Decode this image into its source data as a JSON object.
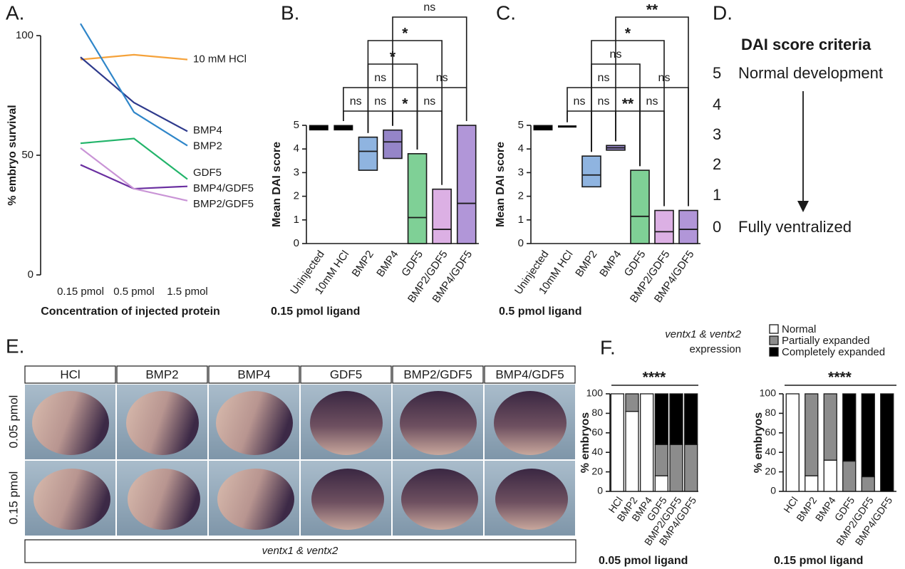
{
  "panel_labels": [
    "A.",
    "B.",
    "C.",
    "D.",
    "E.",
    "F."
  ],
  "chart_data": [
    {
      "type": "line",
      "ylabel": "% embryo survival",
      "xlabel": "Concentration of injected protein",
      "categories": [
        "0.15 pmol",
        "0.5 pmol",
        "1.5 pmol"
      ],
      "ylim": [
        0,
        100
      ],
      "yticks": [
        0,
        50,
        100
      ],
      "series": [
        {
          "name": "10 mM HCl",
          "color": "#f5a23a",
          "values": [
            90,
            92,
            90
          ]
        },
        {
          "name": "BMP4",
          "color": "#2e3a8c",
          "values": [
            91,
            72,
            60
          ]
        },
        {
          "name": "BMP2",
          "color": "#2f86c9",
          "values": [
            105,
            68,
            54
          ]
        },
        {
          "name": "GDF5",
          "color": "#22b46a",
          "values": [
            55,
            57,
            40
          ]
        },
        {
          "name": "BMP4/GDF5",
          "color": "#6a2fa0",
          "values": [
            46,
            36,
            37
          ]
        },
        {
          "name": "BMP2/GDF5",
          "color": "#c994d6",
          "values": [
            53,
            36,
            31
          ]
        }
      ]
    },
    {
      "type": "floating-bar",
      "ylabel": "Mean DAI score",
      "xlabel": "0.15 pmol ligand",
      "categories": [
        "Uninjected",
        "10mM HCl",
        "BMP2",
        "BMP4",
        "GDF5",
        "BMP2/GDF5",
        "BMP4/GDF5"
      ],
      "ylim": [
        0,
        5
      ],
      "yticks": [
        0,
        1,
        2,
        3,
        4,
        5
      ],
      "low": [
        4.8,
        4.8,
        3.1,
        3.6,
        0,
        0,
        0
      ],
      "high": [
        5.0,
        5.0,
        4.5,
        4.8,
        3.8,
        2.3,
        5.0
      ],
      "mean": [
        4.9,
        4.9,
        3.9,
        4.3,
        1.1,
        0.6,
        1.7
      ],
      "colors": [
        "#000000",
        "#000000",
        "#8fb4e0",
        "#9585c8",
        "#7fd096",
        "#dcb0e4",
        "#b196d8"
      ],
      "comparisons": [
        {
          "groups": [
            "10mM HCl",
            "BMP2"
          ],
          "label": "ns"
        },
        {
          "groups": [
            "BMP2",
            "BMP4"
          ],
          "label": "ns"
        },
        {
          "groups": [
            "BMP4",
            "GDF5"
          ],
          "label": "*"
        },
        {
          "groups": [
            "GDF5",
            "BMP2/GDF5"
          ],
          "label": "ns"
        },
        {
          "groups": [
            "10mM HCl",
            "GDF5"
          ],
          "label": "ns"
        },
        {
          "groups": [
            "GDF5",
            "BMP4/GDF5"
          ],
          "label": "ns"
        },
        {
          "groups": [
            "BMP2",
            "GDF5"
          ],
          "label": "*"
        },
        {
          "groups": [
            "BMP2",
            "BMP2/GDF5"
          ],
          "label": "*"
        },
        {
          "groups": [
            "BMP4",
            "BMP4/GDF5"
          ],
          "label": "ns"
        }
      ]
    },
    {
      "type": "floating-bar",
      "ylabel": "Mean DAI score",
      "xlabel": "0.5 pmol ligand",
      "categories": [
        "Uninjected",
        "10mM HCl",
        "BMP2",
        "BMP4",
        "GDF5",
        "BMP2/GDF5",
        "BMP4/GDF5"
      ],
      "ylim": [
        0,
        5
      ],
      "yticks": [
        0,
        1,
        2,
        3,
        4,
        5
      ],
      "low": [
        4.8,
        4.95,
        2.4,
        3.95,
        0,
        0,
        0
      ],
      "high": [
        5.0,
        4.95,
        3.7,
        4.15,
        3.1,
        1.4,
        1.4
      ],
      "mean": [
        4.9,
        4.95,
        2.9,
        4.05,
        1.15,
        0.5,
        0.6
      ],
      "colors": [
        "#000000",
        "#000000",
        "#8fb4e0",
        "#9585c8",
        "#7fd096",
        "#dcb0e4",
        "#b196d8"
      ],
      "comparisons": [
        {
          "groups": [
            "10mM HCl",
            "BMP2"
          ],
          "label": "ns"
        },
        {
          "groups": [
            "BMP2",
            "BMP4"
          ],
          "label": "ns"
        },
        {
          "groups": [
            "BMP4",
            "GDF5"
          ],
          "label": "**"
        },
        {
          "groups": [
            "GDF5",
            "BMP2/GDF5"
          ],
          "label": "ns"
        },
        {
          "groups": [
            "10mM HCl",
            "GDF5"
          ],
          "label": "ns"
        },
        {
          "groups": [
            "GDF5",
            "BMP4/GDF5"
          ],
          "label": "ns"
        },
        {
          "groups": [
            "BMP2",
            "GDF5"
          ],
          "label": "ns"
        },
        {
          "groups": [
            "BMP2",
            "BMP2/GDF5"
          ],
          "label": "*"
        },
        {
          "groups": [
            "BMP4",
            "BMP4/GDF5"
          ],
          "label": "**"
        }
      ]
    },
    {
      "type": "stacked-bar",
      "title": "ventx1 & ventx2",
      "subtitle": "expression",
      "ylabel": "% embryos",
      "xlabel": "0.05 pmol ligand",
      "categories": [
        "HCl",
        "BMP2",
        "BMP4",
        "GDF5",
        "BMP2/GDF5",
        "BMP4/GDF5"
      ],
      "ylim": [
        0,
        100
      ],
      "yticks": [
        0,
        20,
        40,
        60,
        80,
        100
      ],
      "annotation": "****",
      "series": [
        {
          "name": "Normal",
          "color": "#ffffff",
          "values": [
            100,
            82,
            100,
            16,
            0,
            0
          ]
        },
        {
          "name": "Partially expanded",
          "color": "#8c8c8c",
          "values": [
            0,
            18,
            0,
            32,
            48,
            48
          ]
        },
        {
          "name": "Completely expanded",
          "color": "#000000",
          "values": [
            0,
            0,
            0,
            52,
            52,
            52
          ]
        }
      ]
    },
    {
      "type": "stacked-bar",
      "ylabel": "% embryos",
      "xlabel": "0.15 pmol ligand",
      "categories": [
        "HCl",
        "BMP2",
        "BMP4",
        "GDF5",
        "BMP2/GDF5",
        "BMP4/GDF5"
      ],
      "ylim": [
        0,
        100
      ],
      "yticks": [
        0,
        20,
        40,
        60,
        80,
        100
      ],
      "annotation": "****",
      "series": [
        {
          "color": "#ffffff",
          "values": [
            100,
            16,
            32,
            0,
            0,
            0
          ]
        },
        {
          "color": "#8c8c8c",
          "values": [
            0,
            84,
            68,
            31,
            15,
            0
          ]
        },
        {
          "color": "#000000",
          "values": [
            0,
            0,
            0,
            69,
            85,
            100
          ]
        }
      ]
    }
  ],
  "dai_criteria": {
    "title": "DAI score criteria",
    "items": [
      {
        "score": 5,
        "label": "Normal development"
      },
      {
        "score": 4
      },
      {
        "score": 3
      },
      {
        "score": 2
      },
      {
        "score": 1
      },
      {
        "score": 0,
        "label": "Fully ventralized"
      }
    ]
  },
  "in_situ": {
    "columns": [
      "HCl",
      "BMP2",
      "BMP4",
      "GDF5",
      "BMP2/GDF5",
      "BMP4/GDF5"
    ],
    "rows": [
      "0.05 pmol",
      "0.15 pmol"
    ],
    "caption": "ventx1 & ventx2"
  }
}
